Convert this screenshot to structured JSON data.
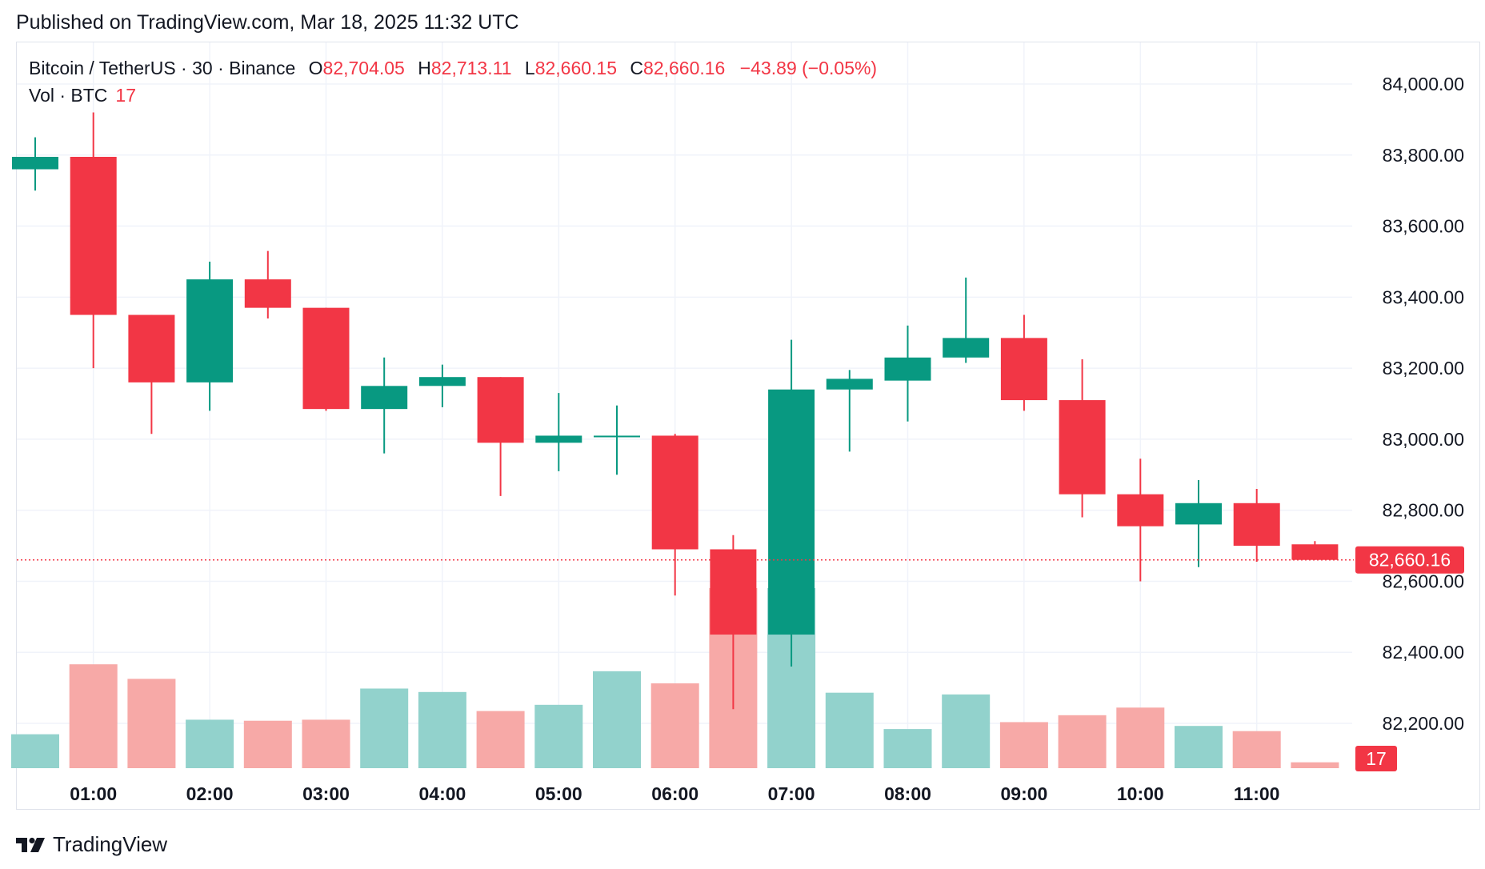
{
  "header": {
    "published": "Published on TradingView.com, Mar 18, 2025 11:32 UTC"
  },
  "legend": {
    "symbol": "Bitcoin / TetherUS · 30 · Binance",
    "open_label": "O",
    "open": "82,704.05",
    "high_label": "H",
    "high": "82,713.11",
    "low_label": "L",
    "low": "82,660.15",
    "close_label": "C",
    "close": "82,660.16",
    "change": "−43.89 (−0.05%)",
    "volume_label": "Vol · BTC",
    "volume": "17"
  },
  "footer": {
    "brand": "TradingView",
    "logo_icon": "tradingview-logo-icon"
  },
  "colors": {
    "up": "#089981",
    "down": "#f23645",
    "up_volume": "#92d2cc",
    "down_volume": "#f7a9a7",
    "grid": "#f0f3fa",
    "text": "#131722"
  },
  "chart_data": {
    "type": "candlestick",
    "interval": "30",
    "price_axis": {
      "range": [
        82060,
        84150
      ],
      "ticks": [
        "84,000.00",
        "83,800.00",
        "83,600.00",
        "83,400.00",
        "83,200.00",
        "83,000.00",
        "82,800.00",
        "82,600.00",
        "82,400.00",
        "82,200.00"
      ],
      "tick_values": [
        84000,
        83800,
        83600,
        83400,
        83200,
        83000,
        82800,
        82600,
        82400,
        82200
      ]
    },
    "time_axis": {
      "ticks": [
        "01:00",
        "02:00",
        "03:00",
        "04:00",
        "05:00",
        "06:00",
        "07:00",
        "08:00",
        "09:00",
        "10:00",
        "11:00"
      ],
      "tick_bar_index": [
        1,
        3,
        5,
        7,
        9,
        11,
        13,
        15,
        17,
        19,
        21
      ]
    },
    "last_price_label": "82,660.16",
    "last_volume_label": "17",
    "candles": [
      {
        "time": "00:30",
        "o": 83760,
        "h": 83850,
        "l": 83700,
        "c": 83795,
        "vol": 98
      },
      {
        "time": "01:00",
        "o": 83795,
        "h": 83920,
        "l": 83200,
        "c": 83350,
        "vol": 300
      },
      {
        "time": "01:30",
        "o": 83350,
        "h": 83350,
        "l": 83015,
        "c": 83160,
        "vol": 258
      },
      {
        "time": "02:00",
        "o": 83160,
        "h": 83500,
        "l": 83080,
        "c": 83450,
        "vol": 140
      },
      {
        "time": "02:30",
        "o": 83450,
        "h": 83530,
        "l": 83340,
        "c": 83370,
        "vol": 137
      },
      {
        "time": "03:00",
        "o": 83370,
        "h": 83370,
        "l": 83080,
        "c": 83085,
        "vol": 140
      },
      {
        "time": "03:30",
        "o": 83085,
        "h": 83230,
        "l": 82960,
        "c": 83150,
        "vol": 230
      },
      {
        "time": "04:00",
        "o": 83150,
        "h": 83210,
        "l": 83090,
        "c": 83175,
        "vol": 220
      },
      {
        "time": "04:30",
        "o": 83175,
        "h": 83175,
        "l": 82840,
        "c": 82990,
        "vol": 165
      },
      {
        "time": "05:00",
        "o": 82990,
        "h": 83130,
        "l": 82910,
        "c": 83010,
        "vol": 183
      },
      {
        "time": "05:30",
        "o": 83010,
        "h": 83095,
        "l": 82900,
        "c": 83010,
        "vol": 280
      },
      {
        "time": "06:00",
        "o": 83010,
        "h": 83015,
        "l": 82560,
        "c": 82690,
        "vol": 245
      },
      {
        "time": "06:30",
        "o": 82690,
        "h": 82730,
        "l": 82240,
        "c": 82450,
        "vol": 520
      },
      {
        "time": "07:00",
        "o": 82450,
        "h": 83280,
        "l": 82360,
        "c": 83140,
        "vol": 520
      },
      {
        "time": "07:30",
        "o": 83140,
        "h": 83195,
        "l": 82965,
        "c": 83170,
        "vol": 218
      },
      {
        "time": "08:00",
        "o": 83165,
        "h": 83320,
        "l": 83050,
        "c": 83230,
        "vol": 113
      },
      {
        "time": "08:30",
        "o": 83230,
        "h": 83455,
        "l": 83215,
        "c": 83285,
        "vol": 213
      },
      {
        "time": "09:00",
        "o": 83285,
        "h": 83350,
        "l": 83080,
        "c": 83110,
        "vol": 133
      },
      {
        "time": "09:30",
        "o": 83110,
        "h": 83225,
        "l": 82780,
        "c": 82845,
        "vol": 153
      },
      {
        "time": "10:00",
        "o": 82845,
        "h": 82945,
        "l": 82600,
        "c": 82755,
        "vol": 175
      },
      {
        "time": "10:30",
        "o": 82760,
        "h": 82885,
        "l": 82640,
        "c": 82820,
        "vol": 122
      },
      {
        "time": "11:00",
        "o": 82820,
        "h": 82860,
        "l": 82655,
        "c": 82700,
        "vol": 107
      },
      {
        "time": "11:30",
        "o": 82704.05,
        "h": 82713.11,
        "l": 82660.15,
        "c": 82660.16,
        "vol": 17
      }
    ]
  }
}
